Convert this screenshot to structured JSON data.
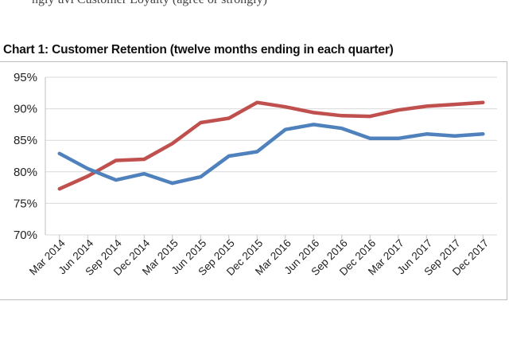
{
  "header_fragment": "ngly uvi Customer Loyalty (agree or strongly)",
  "chart_data": {
    "type": "line",
    "title": "Chart 1: Customer Retention (twelve months ending in each quarter)",
    "xlabel": "",
    "ylabel": "",
    "ylim": [
      70,
      95
    ],
    "yticks": [
      "70%",
      "75%",
      "80%",
      "85%",
      "90%",
      "95%"
    ],
    "ytick_values": [
      70,
      75,
      80,
      85,
      90,
      95
    ],
    "grid": true,
    "legend": "none",
    "categories": [
      "Mar 2014",
      "Jun 2014",
      "Sep 2014",
      "Dec 2014",
      "Mar 2015",
      "Jun 2015",
      "Sep 2015",
      "Dec 2015",
      "Mar 2016",
      "Jun 2016",
      "Sep 2016",
      "Dec 2016",
      "Mar 2017",
      "Jun 2017",
      "Sep 2017",
      "Dec 2017"
    ],
    "series": [
      {
        "color": "#c0504d",
        "values": [
          77.3,
          79.3,
          81.8,
          82.0,
          84.5,
          87.8,
          88.5,
          91.0,
          90.3,
          89.4,
          88.9,
          88.8,
          89.8,
          90.4,
          90.7,
          91.0
        ]
      },
      {
        "color": "#4f81bd",
        "values": [
          82.9,
          80.5,
          78.7,
          79.7,
          78.2,
          79.2,
          82.5,
          83.2,
          86.7,
          87.5,
          86.9,
          85.3,
          85.3,
          86.0,
          85.7,
          86.0
        ]
      }
    ]
  }
}
